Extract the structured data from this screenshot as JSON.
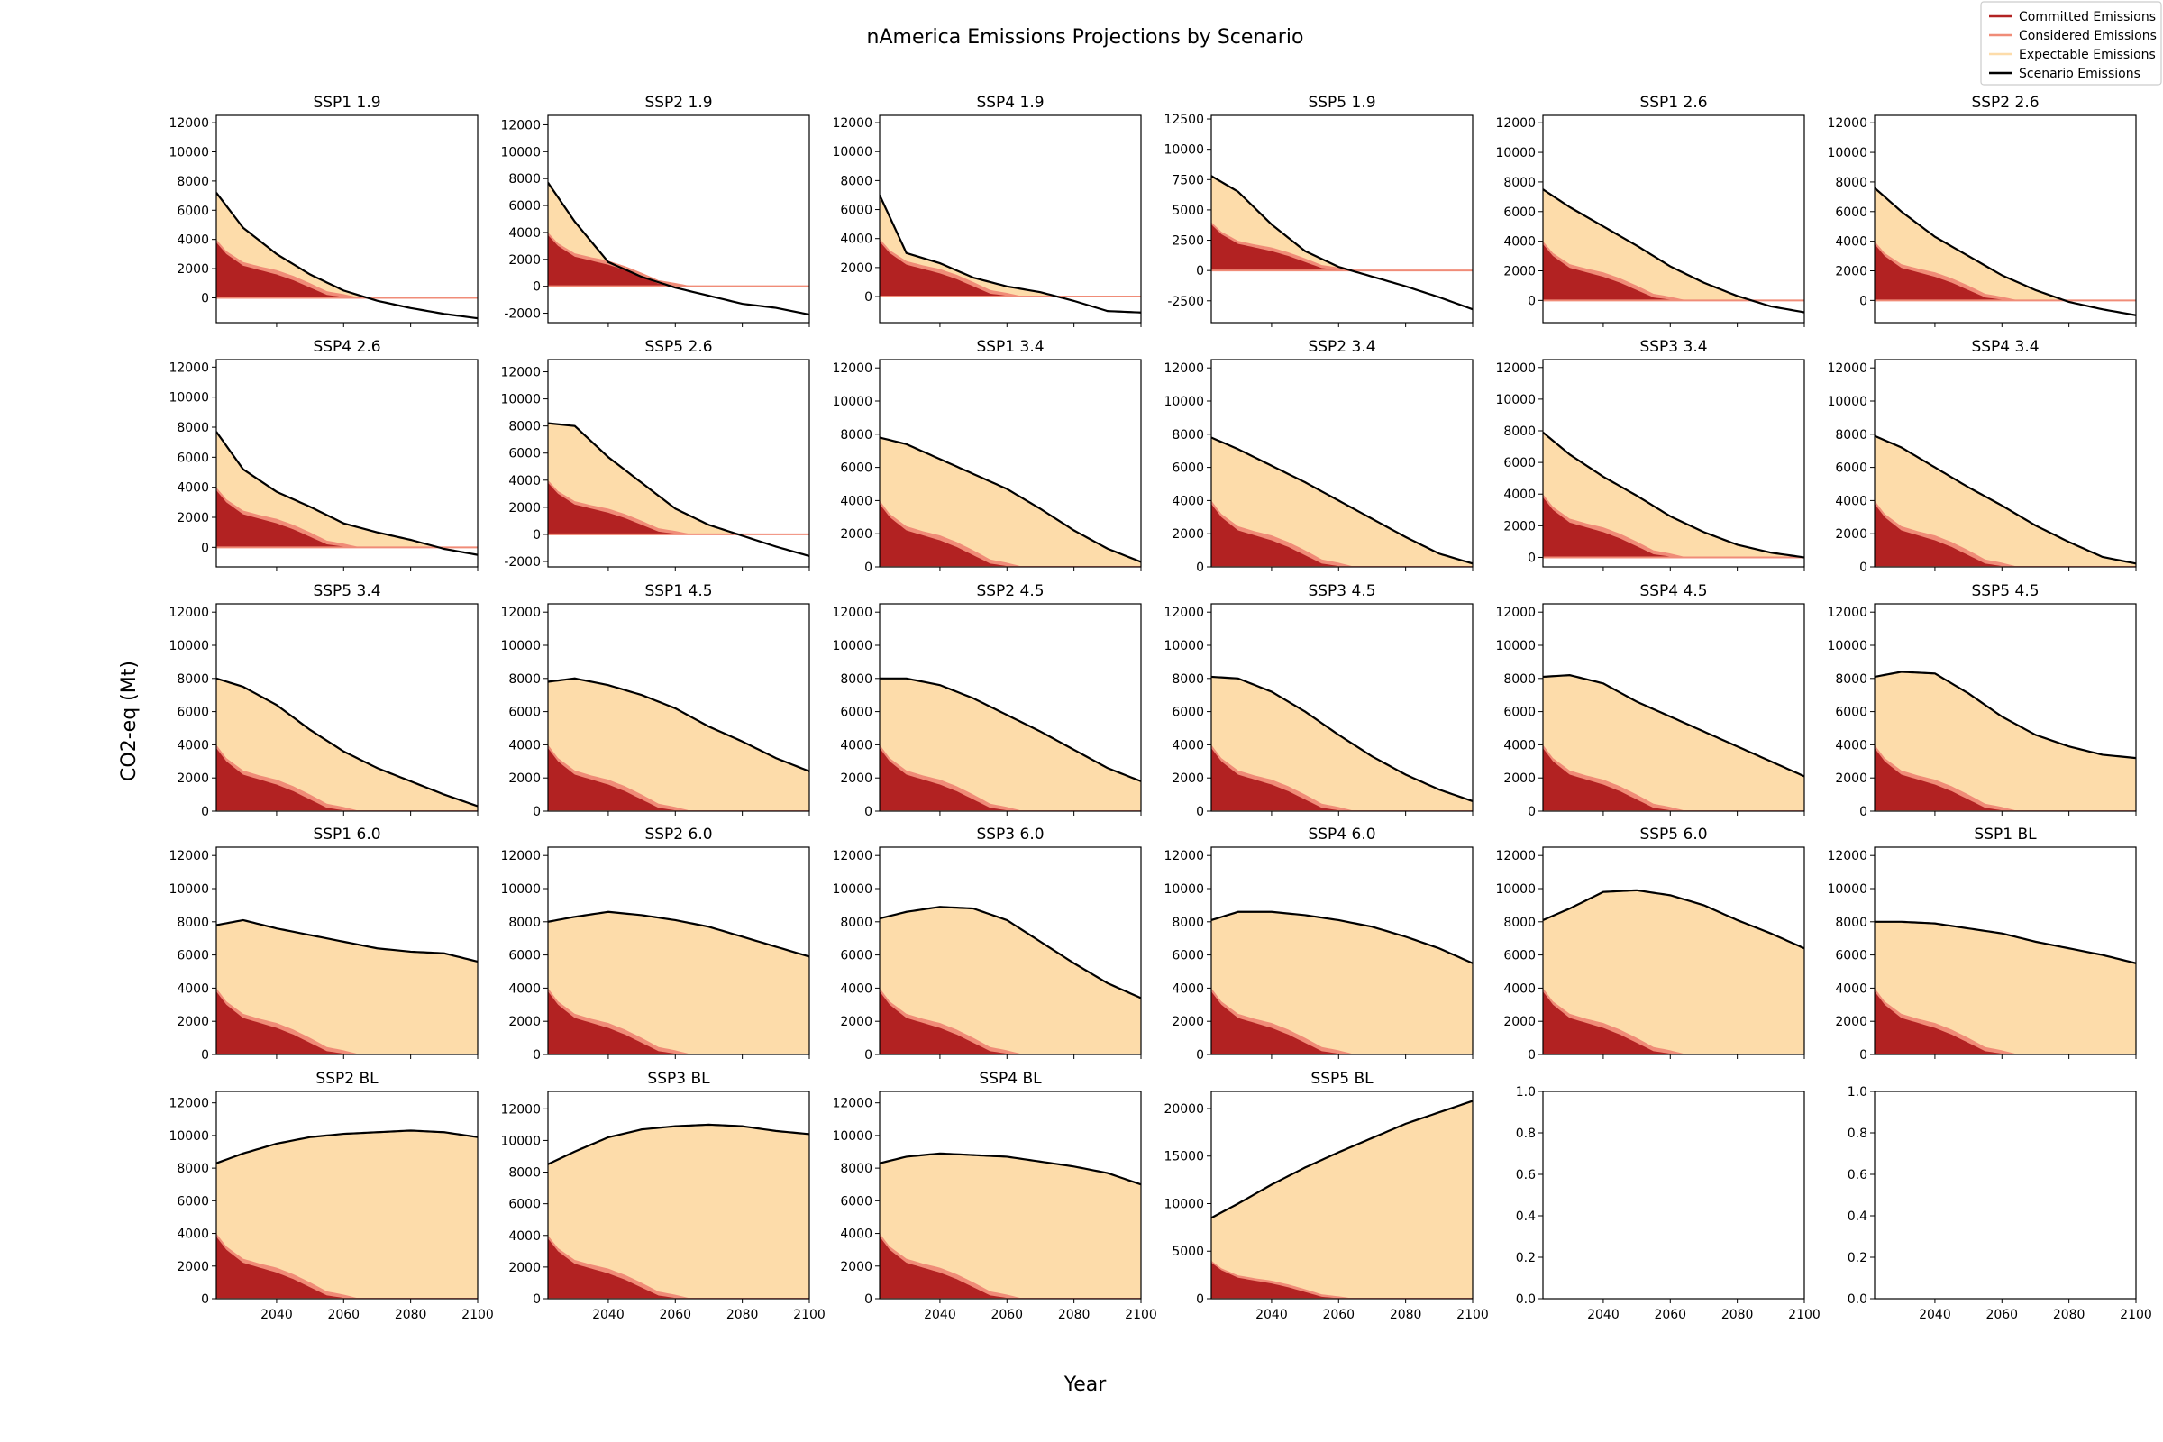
{
  "figure": {
    "title": "nAmerica Emissions Projections by Scenario",
    "xlabel": "Year",
    "ylabel": "CO2-eq (Mt)"
  },
  "legend": {
    "placement": "top-right",
    "entries": [
      {
        "label": "Committed Emissions",
        "color": "#b22222"
      },
      {
        "label": "Considered Emissions",
        "color": "#f08c78"
      },
      {
        "label": "Expectable Emissions",
        "color": "#fddcaa"
      },
      {
        "label": "Scenario Emissions",
        "color": "#000000"
      }
    ]
  },
  "colors": {
    "committed": "#b22222",
    "considered": "#f08c78",
    "expectable": "#fddcaa",
    "scenario": "#000000"
  },
  "chart_data": {
    "type": "area",
    "x": [
      2022,
      2030,
      2040,
      2050,
      2060,
      2070,
      2080,
      2090,
      2100
    ],
    "xlim": [
      2022,
      2100
    ],
    "xticks": [
      2040,
      2060,
      2080,
      2100
    ],
    "committed": {
      "x": [
        2022,
        2025,
        2030,
        2035,
        2040,
        2045,
        2050,
        2055,
        2060,
        2065
      ],
      "values": [
        3800,
        3000,
        2200,
        1900,
        1600,
        1200,
        700,
        200,
        50,
        0
      ]
    },
    "considered": {
      "x": [
        2022,
        2025,
        2030,
        2035,
        2040,
        2045,
        2050,
        2055,
        2060,
        2065
      ],
      "values": [
        4000,
        3200,
        2450,
        2150,
        1900,
        1500,
        1000,
        450,
        250,
        0
      ]
    },
    "panels": [
      {
        "title": "SSP1 1.9",
        "ylim": [
          -1700,
          12500
        ],
        "yticks": [
          0,
          2000,
          4000,
          6000,
          8000,
          10000,
          12000
        ],
        "scenario": [
          7200,
          4800,
          3000,
          1600,
          500,
          -200,
          -700,
          -1100,
          -1400
        ]
      },
      {
        "title": "SSP2 1.9",
        "ylim": [
          -2700,
          12700
        ],
        "yticks": [
          -2000,
          0,
          2000,
          4000,
          6000,
          8000,
          10000,
          12000
        ],
        "scenario": [
          7700,
          4800,
          1800,
          700,
          -100,
          -700,
          -1300,
          -1600,
          -2100
        ]
      },
      {
        "title": "SSP4 1.9",
        "ylim": [
          -1800,
          12500
        ],
        "yticks": [
          0,
          2000,
          4000,
          6000,
          8000,
          10000,
          12000
        ],
        "scenario": [
          7000,
          3000,
          2300,
          1300,
          700,
          300,
          -300,
          -1000,
          -1100
        ]
      },
      {
        "title": "SSP5 1.9",
        "ylim": [
          -4300,
          12800
        ],
        "yticks": [
          -2500,
          0,
          2500,
          5000,
          7500,
          10000,
          12500
        ],
        "scenario": [
          7800,
          6500,
          3800,
          1600,
          300,
          -500,
          -1300,
          -2200,
          -3200
        ]
      },
      {
        "title": "SSP1 2.6",
        "ylim": [
          -1500,
          12500
        ],
        "yticks": [
          0,
          2000,
          4000,
          6000,
          8000,
          10000,
          12000
        ],
        "scenario": [
          7500,
          6300,
          5000,
          3700,
          2300,
          1200,
          300,
          -400,
          -800
        ]
      },
      {
        "title": "SSP2 2.6",
        "ylim": [
          -1500,
          12500
        ],
        "yticks": [
          0,
          2000,
          4000,
          6000,
          8000,
          10000,
          12000
        ],
        "scenario": [
          7600,
          6000,
          4300,
          3000,
          1700,
          700,
          -100,
          -600,
          -1000
        ]
      },
      {
        "title": "SSP4 2.6",
        "ylim": [
          -1300,
          12500
        ],
        "yticks": [
          0,
          2000,
          4000,
          6000,
          8000,
          10000,
          12000
        ],
        "scenario": [
          7700,
          5200,
          3700,
          2700,
          1600,
          1000,
          500,
          -100,
          -500
        ]
      },
      {
        "title": "SSP5 2.6",
        "ylim": [
          -2400,
          12900
        ],
        "yticks": [
          -2000,
          0,
          2000,
          4000,
          6000,
          8000,
          10000,
          12000
        ],
        "scenario": [
          8200,
          8000,
          5700,
          3800,
          1900,
          700,
          -100,
          -900,
          -1600
        ]
      },
      {
        "title": "SSP1 3.4",
        "ylim": [
          0,
          12500
        ],
        "yticks": [
          0,
          2000,
          4000,
          6000,
          8000,
          10000,
          12000
        ],
        "scenario": [
          7800,
          7400,
          6500,
          5600,
          4700,
          3500,
          2200,
          1100,
          300
        ]
      },
      {
        "title": "SSP2 3.4",
        "ylim": [
          0,
          12500
        ],
        "yticks": [
          0,
          2000,
          4000,
          6000,
          8000,
          10000,
          12000
        ],
        "scenario": [
          7800,
          7100,
          6100,
          5100,
          4000,
          2900,
          1800,
          800,
          200
        ]
      },
      {
        "title": "SSP3 3.4",
        "ylim": [
          -600,
          12500
        ],
        "yticks": [
          0,
          2000,
          4000,
          6000,
          8000,
          10000,
          12000
        ],
        "scenario": [
          7900,
          6500,
          5100,
          3900,
          2600,
          1600,
          800,
          300,
          0
        ]
      },
      {
        "title": "SSP4 3.4",
        "ylim": [
          0,
          12500
        ],
        "yticks": [
          0,
          2000,
          4000,
          6000,
          8000,
          10000,
          12000
        ],
        "scenario": [
          7900,
          7200,
          6000,
          4800,
          3700,
          2500,
          1500,
          600,
          200
        ]
      },
      {
        "title": "SSP5 3.4",
        "ylim": [
          0,
          12500
        ],
        "yticks": [
          0,
          2000,
          4000,
          6000,
          8000,
          10000,
          12000
        ],
        "scenario": [
          8000,
          7500,
          6400,
          4900,
          3600,
          2600,
          1800,
          1000,
          300
        ]
      },
      {
        "title": "SSP1 4.5",
        "ylim": [
          0,
          12500
        ],
        "yticks": [
          0,
          2000,
          4000,
          6000,
          8000,
          10000,
          12000
        ],
        "scenario": [
          7800,
          8000,
          7600,
          7000,
          6200,
          5100,
          4200,
          3200,
          2400
        ]
      },
      {
        "title": "SSP2 4.5",
        "ylim": [
          0,
          12500
        ],
        "yticks": [
          0,
          2000,
          4000,
          6000,
          8000,
          10000,
          12000
        ],
        "scenario": [
          8000,
          8000,
          7600,
          6800,
          5800,
          4800,
          3700,
          2600,
          1800
        ]
      },
      {
        "title": "SSP3 4.5",
        "ylim": [
          0,
          12500
        ],
        "yticks": [
          0,
          2000,
          4000,
          6000,
          8000,
          10000,
          12000
        ],
        "scenario": [
          8100,
          8000,
          7200,
          6000,
          4600,
          3300,
          2200,
          1300,
          600
        ]
      },
      {
        "title": "SSP4 4.5",
        "ylim": [
          0,
          12500
        ],
        "yticks": [
          0,
          2000,
          4000,
          6000,
          8000,
          10000,
          12000
        ],
        "scenario": [
          8100,
          8200,
          7700,
          6600,
          5700,
          4800,
          3900,
          3000,
          2100
        ]
      },
      {
        "title": "SSP5 4.5",
        "ylim": [
          0,
          12500
        ],
        "yticks": [
          0,
          2000,
          4000,
          6000,
          8000,
          10000,
          12000
        ],
        "scenario": [
          8100,
          8400,
          8300,
          7100,
          5700,
          4600,
          3900,
          3400,
          3200
        ]
      },
      {
        "title": "SSP1 6.0",
        "ylim": [
          0,
          12500
        ],
        "yticks": [
          0,
          2000,
          4000,
          6000,
          8000,
          10000,
          12000
        ],
        "scenario": [
          7800,
          8100,
          7600,
          7200,
          6800,
          6400,
          6200,
          6100,
          5600
        ]
      },
      {
        "title": "SSP2 6.0",
        "ylim": [
          0,
          12500
        ],
        "yticks": [
          0,
          2000,
          4000,
          6000,
          8000,
          10000,
          12000
        ],
        "scenario": [
          8000,
          8300,
          8600,
          8400,
          8100,
          7700,
          7100,
          6500,
          5900
        ]
      },
      {
        "title": "SSP3 6.0",
        "ylim": [
          0,
          12500
        ],
        "yticks": [
          0,
          2000,
          4000,
          6000,
          8000,
          10000,
          12000
        ],
        "scenario": [
          8200,
          8600,
          8900,
          8800,
          8100,
          6800,
          5500,
          4300,
          3400
        ]
      },
      {
        "title": "SSP4 6.0",
        "ylim": [
          0,
          12500
        ],
        "yticks": [
          0,
          2000,
          4000,
          6000,
          8000,
          10000,
          12000
        ],
        "scenario": [
          8100,
          8600,
          8600,
          8400,
          8100,
          7700,
          7100,
          6400,
          5500
        ]
      },
      {
        "title": "SSP5 6.0",
        "ylim": [
          0,
          12500
        ],
        "yticks": [
          0,
          2000,
          4000,
          6000,
          8000,
          10000,
          12000
        ],
        "scenario": [
          8100,
          8800,
          9800,
          9900,
          9600,
          9000,
          8100,
          7300,
          6400
        ]
      },
      {
        "title": "SSP1 BL",
        "ylim": [
          0,
          12500
        ],
        "yticks": [
          0,
          2000,
          4000,
          6000,
          8000,
          10000,
          12000
        ],
        "scenario": [
          8000,
          8000,
          7900,
          7600,
          7300,
          6800,
          6400,
          6000,
          5500
        ]
      },
      {
        "title": "SSP2 BL",
        "ylim": [
          0,
          12700
        ],
        "yticks": [
          0,
          2000,
          4000,
          6000,
          8000,
          10000,
          12000
        ],
        "scenario": [
          8300,
          8900,
          9500,
          9900,
          10100,
          10200,
          10300,
          10200,
          9900
        ]
      },
      {
        "title": "SSP3 BL",
        "ylim": [
          0,
          13100
        ],
        "yticks": [
          0,
          2000,
          4000,
          6000,
          8000,
          10000,
          12000
        ],
        "scenario": [
          8500,
          9300,
          10200,
          10700,
          10900,
          11000,
          10900,
          10600,
          10400
        ]
      },
      {
        "title": "SSP4 BL",
        "ylim": [
          0,
          12700
        ],
        "yticks": [
          0,
          2000,
          4000,
          6000,
          8000,
          10000,
          12000
        ],
        "scenario": [
          8300,
          8700,
          8900,
          8800,
          8700,
          8400,
          8100,
          7700,
          7000
        ]
      },
      {
        "title": "SSP5 BL",
        "ylim": [
          0,
          21800
        ],
        "yticks": [
          0,
          5000,
          10000,
          15000,
          20000
        ],
        "scenario": [
          8500,
          10000,
          12000,
          13800,
          15400,
          16900,
          18400,
          19600,
          20800
        ]
      },
      {
        "title": "",
        "empty": true,
        "ylim": [
          0,
          1
        ],
        "yticks": [
          0.0,
          0.2,
          0.4,
          0.6,
          0.8,
          1.0
        ]
      },
      {
        "title": "",
        "empty": true,
        "ylim": [
          0,
          1
        ],
        "yticks": [
          0.0,
          0.2,
          0.4,
          0.6,
          0.8,
          1.0
        ]
      }
    ]
  }
}
